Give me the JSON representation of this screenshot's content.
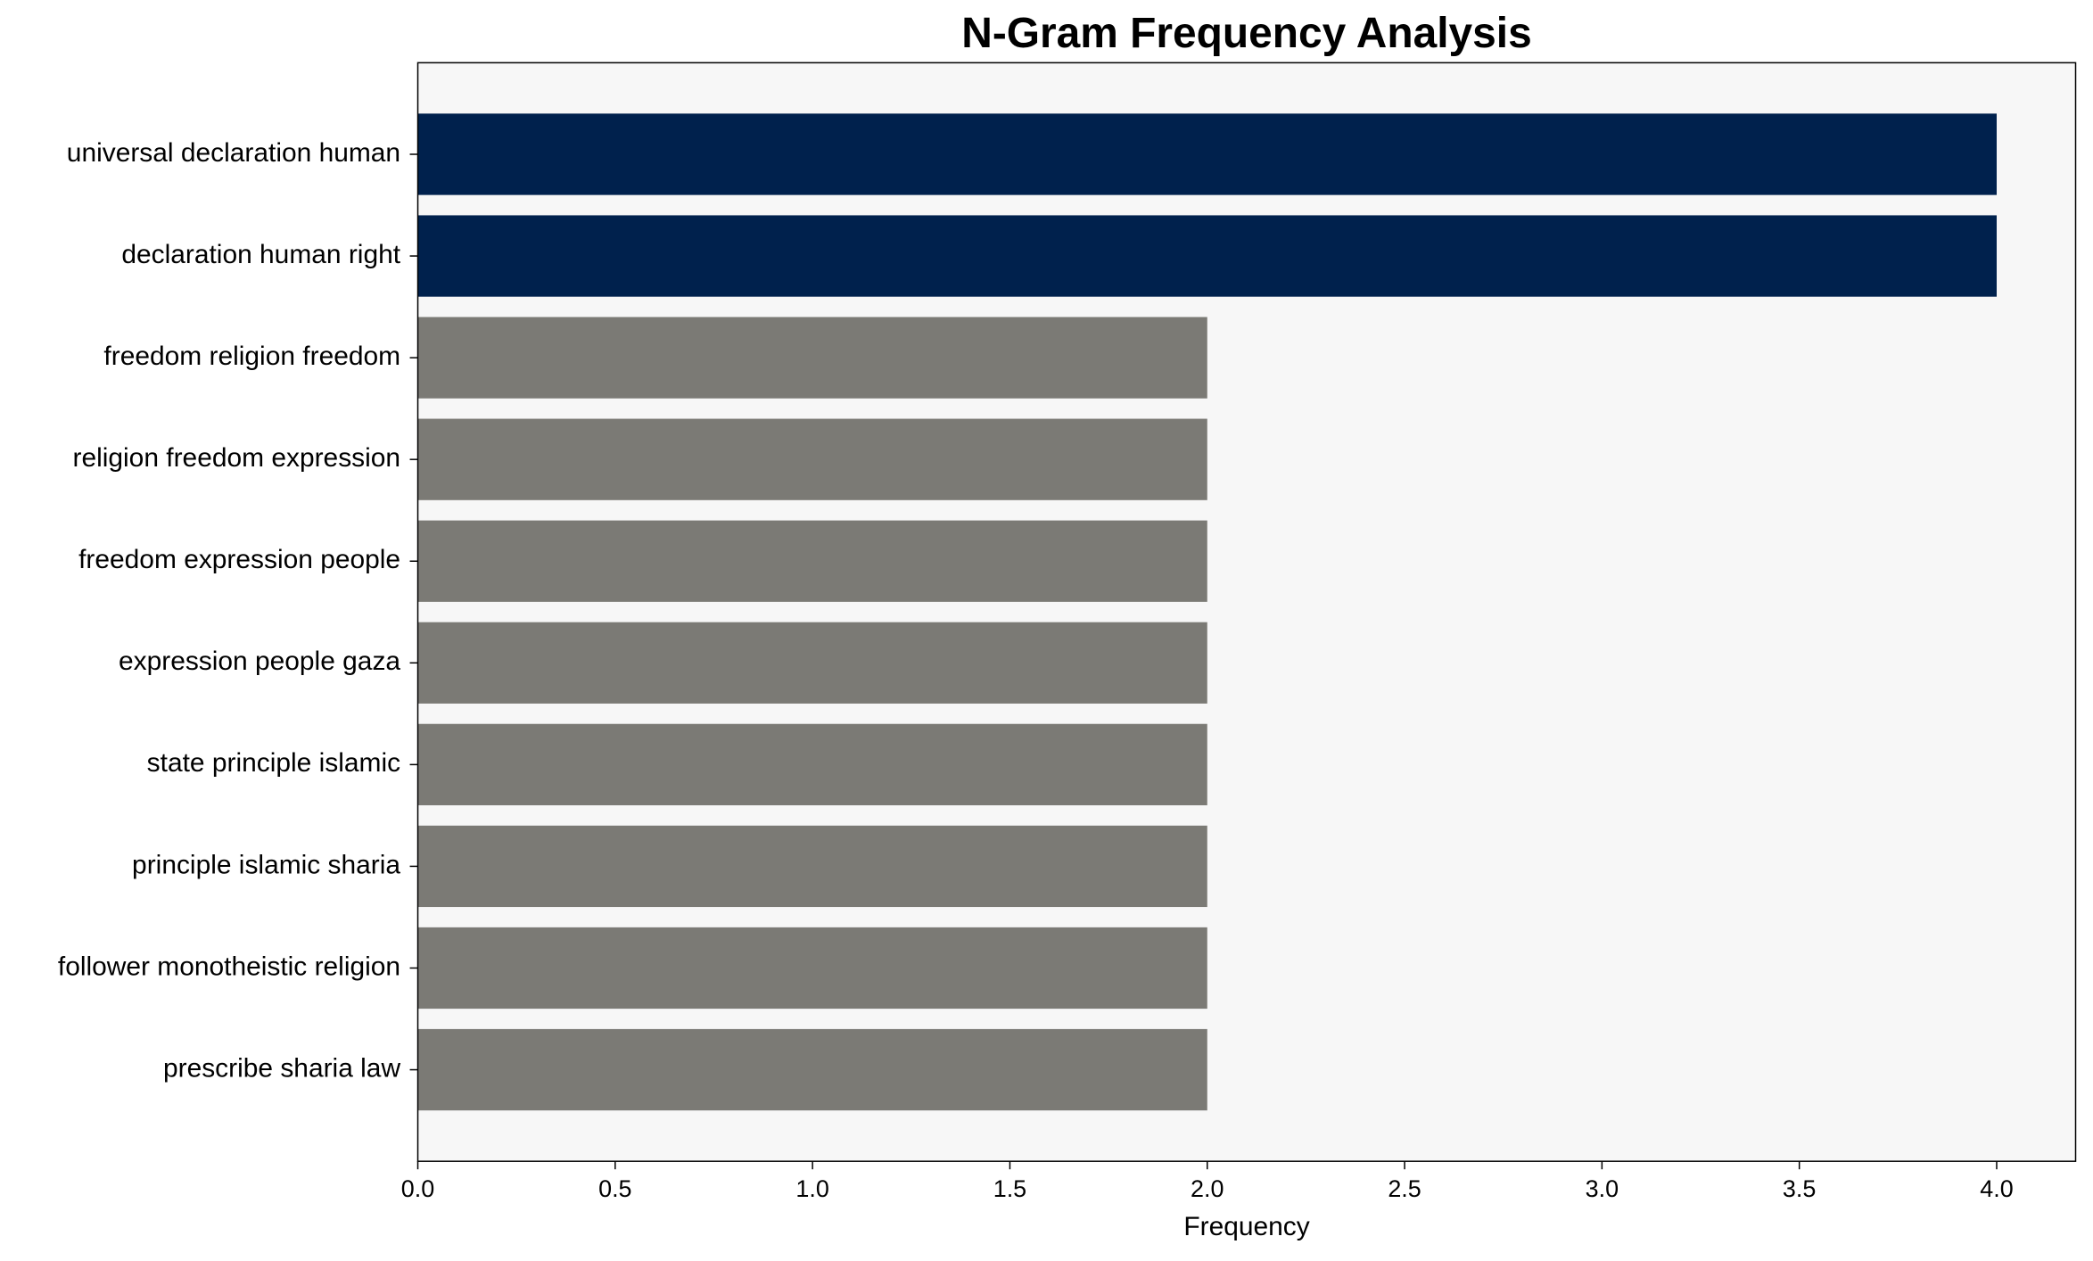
{
  "chart_data": {
    "type": "barh",
    "title": "N-Gram Frequency Analysis",
    "xlabel": "Frequency",
    "categories": [
      "universal declaration human",
      "declaration human right",
      "freedom religion freedom",
      "religion freedom expression",
      "freedom expression people",
      "expression people gaza",
      "state principle islamic",
      "principle islamic sharia",
      "follower monotheistic religion",
      "prescribe sharia law"
    ],
    "values": [
      4,
      4,
      2,
      2,
      2,
      2,
      2,
      2,
      2,
      2
    ],
    "colors": [
      "#00214d",
      "#00214d",
      "#7b7a75",
      "#7b7a75",
      "#7b7a75",
      "#7b7a75",
      "#7b7a75",
      "#7b7a75",
      "#7b7a75",
      "#7b7a75"
    ],
    "xlim": [
      0,
      4.2
    ],
    "xticks": [
      {
        "value": 0,
        "label": "0.0"
      },
      0.5,
      {
        "value": 1,
        "label": "1.0"
      },
      1.5,
      {
        "value": 2,
        "label": "2.0"
      },
      2.5,
      {
        "value": 3,
        "label": "3.0"
      },
      3.5,
      {
        "value": 4,
        "label": "4.0"
      }
    ],
    "grid": false,
    "background": "#f7f7f7"
  }
}
